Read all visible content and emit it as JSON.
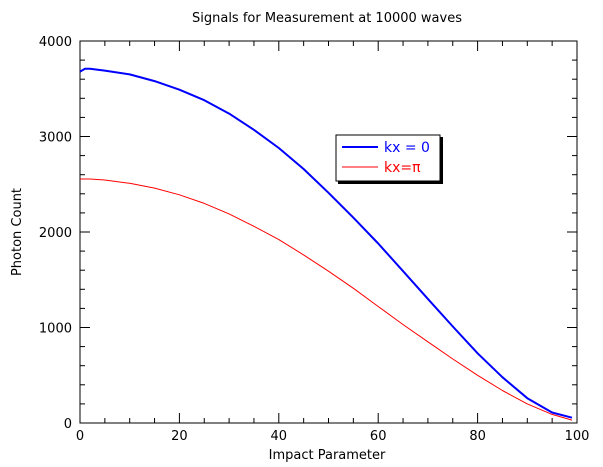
{
  "chart_data": {
    "type": "line",
    "title": "Signals for Measurement at 10000 waves",
    "xlabel": "Impact Parameter",
    "ylabel": "Photon Count",
    "xlim": [
      0,
      100
    ],
    "ylim": [
      0,
      4000
    ],
    "xticks": [
      0,
      20,
      40,
      60,
      80,
      100
    ],
    "yticks": [
      0,
      1000,
      2000,
      3000,
      4000
    ],
    "grid": false,
    "legend_position": "upper-right-inside",
    "series": [
      {
        "name": "kx = 0",
        "color": "#0000ff",
        "x": [
          0,
          1,
          2,
          5,
          10,
          15,
          20,
          25,
          30,
          35,
          40,
          45,
          50,
          55,
          60,
          65,
          70,
          75,
          80,
          85,
          90,
          95,
          99
        ],
        "y": [
          3680,
          3710,
          3710,
          3690,
          3650,
          3580,
          3490,
          3380,
          3240,
          3070,
          2880,
          2660,
          2410,
          2150,
          1880,
          1590,
          1300,
          1010,
          730,
          480,
          260,
          110,
          55
        ]
      },
      {
        "name": "kx=π",
        "color": "#ff0000",
        "x": [
          0,
          2,
          5,
          10,
          15,
          20,
          25,
          30,
          35,
          40,
          45,
          50,
          55,
          60,
          65,
          70,
          75,
          80,
          85,
          90,
          95,
          99
        ],
        "y": [
          2555,
          2555,
          2545,
          2510,
          2460,
          2390,
          2300,
          2190,
          2060,
          1920,
          1760,
          1590,
          1410,
          1220,
          1030,
          850,
          670,
          500,
          340,
          200,
          90,
          30
        ]
      }
    ]
  }
}
